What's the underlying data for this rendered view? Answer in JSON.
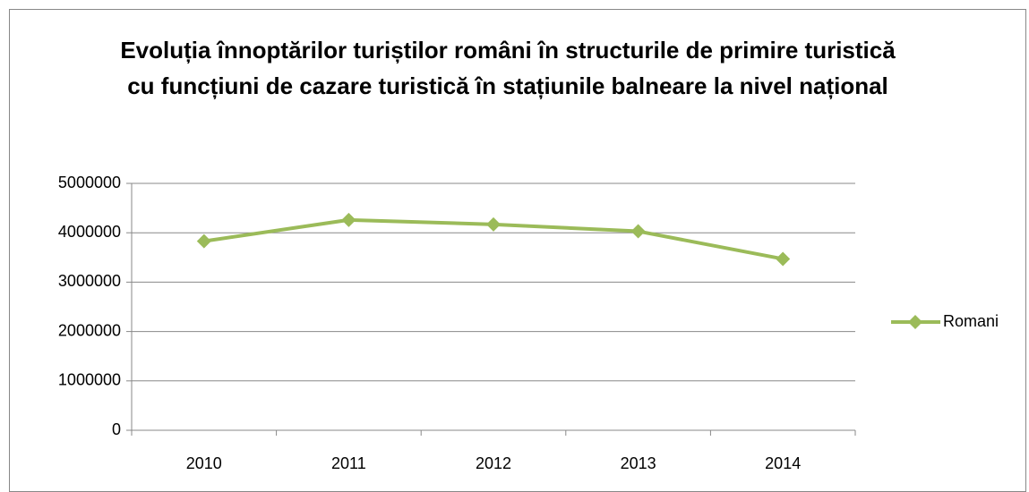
{
  "chart_data": {
    "type": "line",
    "title": "Evoluția înnoptărilor turiștilor români în structurile de primire turistică cu funcțiuni de cazare turistică în stațiunile balneare la nivel național",
    "categories": [
      "2010",
      "2011",
      "2012",
      "2013",
      "2014"
    ],
    "series": [
      {
        "name": "Romani",
        "color": "#9bbb59",
        "values": [
          3830000,
          4260000,
          4170000,
          4030000,
          3470000
        ]
      }
    ],
    "ylim": [
      0,
      5000000
    ],
    "yticks": [
      0,
      1000000,
      2000000,
      3000000,
      4000000,
      5000000
    ],
    "grid": true,
    "legend": "right"
  }
}
